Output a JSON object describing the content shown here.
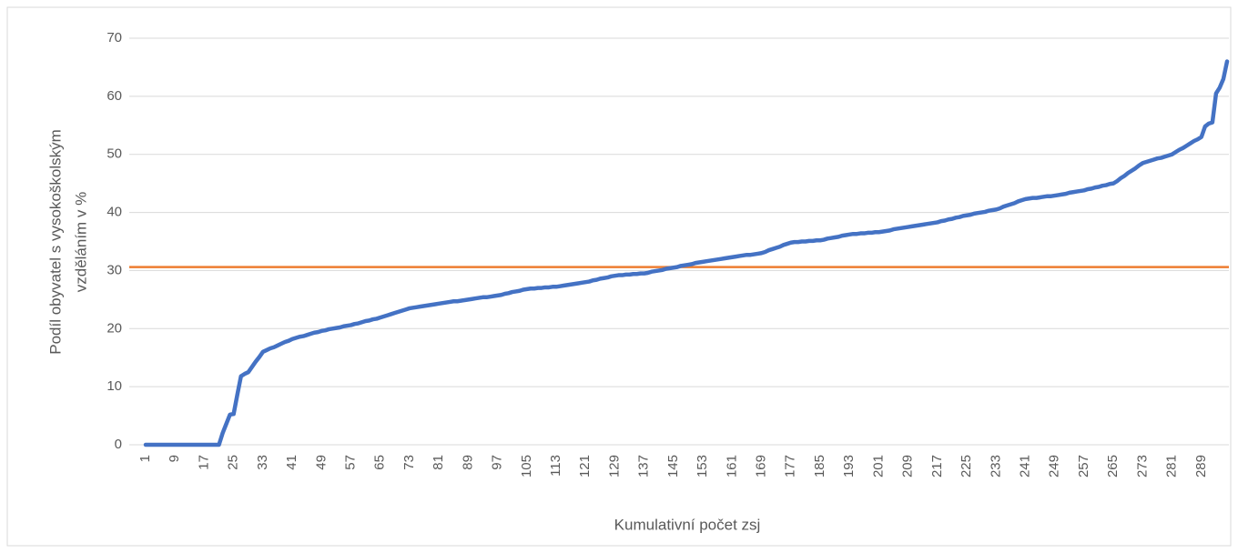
{
  "chart_data": {
    "type": "line",
    "xlabel": "Kumulativní počet zsj",
    "ylabel": [
      "Podíl obyvatel s vysokoškolským",
      "vzděláním v %"
    ],
    "categories": [
      "1",
      null,
      null,
      null,
      null,
      null,
      null,
      null,
      "9",
      null,
      null,
      null,
      null,
      null,
      null,
      null,
      "17",
      null,
      null,
      null,
      null,
      null,
      null,
      null,
      "25",
      null,
      null,
      null,
      null,
      null,
      null,
      null,
      "33",
      null,
      null,
      null,
      null,
      null,
      null,
      null,
      "41",
      null,
      null,
      null,
      null,
      null,
      null,
      null,
      "49",
      null,
      null,
      null,
      null,
      null,
      null,
      null,
      "57",
      null,
      null,
      null,
      null,
      null,
      null,
      null,
      "65",
      null,
      null,
      null,
      null,
      null,
      null,
      null,
      "73",
      null,
      null,
      null,
      null,
      null,
      null,
      null,
      "81",
      null,
      null,
      null,
      null,
      null,
      null,
      null,
      "89",
      null,
      null,
      null,
      null,
      null,
      null,
      null,
      "97",
      null,
      null,
      null,
      null,
      null,
      null,
      null,
      "105",
      null,
      null,
      null,
      null,
      null,
      null,
      null,
      "113",
      null,
      null,
      null,
      null,
      null,
      null,
      null,
      "121",
      null,
      null,
      null,
      null,
      null,
      null,
      null,
      "129",
      null,
      null,
      null,
      null,
      null,
      null,
      null,
      "137",
      null,
      null,
      null,
      null,
      null,
      null,
      null,
      "145",
      null,
      null,
      null,
      null,
      null,
      null,
      null,
      "153",
      null,
      null,
      null,
      null,
      null,
      null,
      null,
      "161",
      null,
      null,
      null,
      null,
      null,
      null,
      null,
      "169",
      null,
      null,
      null,
      null,
      null,
      null,
      null,
      "177",
      null,
      null,
      null,
      null,
      null,
      null,
      null,
      "185",
      null,
      null,
      null,
      null,
      null,
      null,
      null,
      "193",
      null,
      null,
      null,
      null,
      null,
      null,
      null,
      "201",
      null,
      null,
      null,
      null,
      null,
      null,
      null,
      "209",
      null,
      null,
      null,
      null,
      null,
      null,
      null,
      "217",
      null,
      null,
      null,
      null,
      null,
      null,
      null,
      "225",
      null,
      null,
      null,
      null,
      null,
      null,
      null,
      "233",
      null,
      null,
      null,
      null,
      null,
      null,
      null,
      "241",
      null,
      null,
      null,
      null,
      null,
      null,
      null,
      "249",
      null,
      null,
      null,
      null,
      null,
      null,
      null,
      "257",
      null,
      null,
      null,
      null,
      null,
      null,
      null,
      "265",
      null,
      null,
      null,
      null,
      null,
      null,
      null,
      "273",
      null,
      null,
      null,
      null,
      null,
      null,
      null,
      "281",
      null,
      null,
      null,
      null,
      null,
      null,
      null,
      "289",
      null,
      null,
      null,
      null,
      null,
      null,
      null
    ],
    "values": [
      0,
      0,
      0,
      0,
      0,
      0,
      0,
      0,
      0,
      0,
      0,
      0,
      0,
      0,
      0,
      0,
      0,
      0,
      0,
      0,
      0,
      2,
      3.6,
      5.2,
      5.3,
      8.6,
      11.8,
      12.2,
      12.5,
      13.4,
      14.3,
      15.1,
      16,
      16.3,
      16.6,
      16.8,
      17.1,
      17.4,
      17.7,
      17.9,
      18.2,
      18.4,
      18.6,
      18.7,
      18.9,
      19.1,
      19.3,
      19.4,
      19.6,
      19.7,
      19.9,
      20,
      20.1,
      20.2,
      20.4,
      20.5,
      20.6,
      20.8,
      20.9,
      21.1,
      21.3,
      21.4,
      21.6,
      21.7,
      21.9,
      22.1,
      22.3,
      22.5,
      22.7,
      22.9,
      23.1,
      23.3,
      23.5,
      23.6,
      23.7,
      23.8,
      23.9,
      24,
      24.1,
      24.2,
      24.3,
      24.4,
      24.5,
      24.6,
      24.7,
      24.7,
      24.8,
      24.9,
      25,
      25.1,
      25.2,
      25.3,
      25.4,
      25.4,
      25.5,
      25.6,
      25.7,
      25.8,
      26,
      26.1,
      26.3,
      26.4,
      26.5,
      26.7,
      26.8,
      26.9,
      26.9,
      27,
      27,
      27.1,
      27.1,
      27.2,
      27.2,
      27.3,
      27.4,
      27.5,
      27.6,
      27.7,
      27.8,
      27.9,
      28,
      28.1,
      28.3,
      28.4,
      28.6,
      28.7,
      28.8,
      29,
      29.1,
      29.2,
      29.2,
      29.3,
      29.3,
      29.4,
      29.4,
      29.5,
      29.5,
      29.6,
      29.8,
      29.9,
      30,
      30.1,
      30.3,
      30.4,
      30.5,
      30.6,
      30.8,
      30.9,
      31,
      31.1,
      31.3,
      31.4,
      31.5,
      31.6,
      31.7,
      31.8,
      31.9,
      32,
      32.1,
      32.2,
      32.3,
      32.4,
      32.5,
      32.6,
      32.7,
      32.7,
      32.8,
      32.9,
      33,
      33.2,
      33.5,
      33.7,
      33.9,
      34.1,
      34.4,
      34.6,
      34.8,
      34.9,
      34.9,
      35,
      35,
      35.1,
      35.1,
      35.2,
      35.2,
      35.3,
      35.5,
      35.6,
      35.7,
      35.8,
      36,
      36.1,
      36.2,
      36.3,
      36.3,
      36.4,
      36.4,
      36.5,
      36.5,
      36.6,
      36.6,
      36.7,
      36.8,
      36.9,
      37.1,
      37.2,
      37.3,
      37.4,
      37.5,
      37.6,
      37.7,
      37.8,
      37.9,
      38,
      38.1,
      38.2,
      38.3,
      38.5,
      38.6,
      38.8,
      38.9,
      39.1,
      39.2,
      39.4,
      39.5,
      39.6,
      39.8,
      39.9,
      40,
      40.1,
      40.3,
      40.4,
      40.5,
      40.7,
      41,
      41.2,
      41.4,
      41.6,
      41.9,
      42.1,
      42.3,
      42.4,
      42.5,
      42.5,
      42.6,
      42.7,
      42.8,
      42.8,
      42.9,
      43,
      43.1,
      43.2,
      43.4,
      43.5,
      43.6,
      43.7,
      43.8,
      44,
      44.1,
      44.3,
      44.4,
      44.6,
      44.7,
      44.9,
      45,
      45.4,
      45.9,
      46.3,
      46.8,
      47.2,
      47.6,
      48.1,
      48.5,
      48.7,
      48.9,
      49.1,
      49.3,
      49.4,
      49.6,
      49.8,
      50,
      50.4,
      50.8,
      51.1,
      51.5,
      51.9,
      52.3,
      52.6,
      53,
      54.8,
      55.3,
      55.5,
      60.5,
      61.5,
      63,
      66
    ],
    "color": "#4472c4",
    "reference_line": {
      "value": 30.6,
      "color": "#ed7d31"
    },
    "ylim": [
      0,
      70
    ],
    "yticks": [
      0,
      10,
      20,
      30,
      40,
      50,
      60,
      70
    ],
    "grid": true
  }
}
